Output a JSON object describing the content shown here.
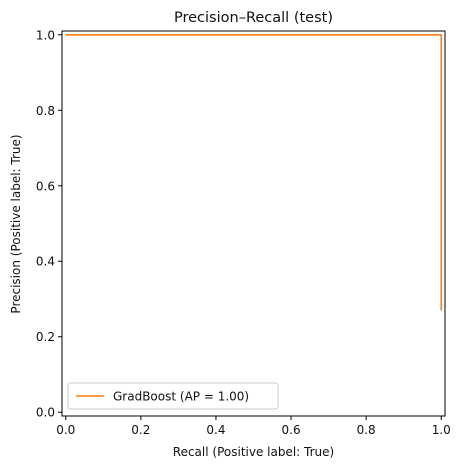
{
  "chart_data": {
    "type": "line",
    "title": "Precision–Recall (test)",
    "xlabel": "Recall (Positive label: True)",
    "ylabel": "Precision (Positive label: True)",
    "xlim": [
      -0.01,
      1.01
    ],
    "ylim": [
      -0.01,
      1.01
    ],
    "xticks": [
      "0.0",
      "0.2",
      "0.4",
      "0.6",
      "0.8",
      "1.0"
    ],
    "yticks": [
      "0.0",
      "0.2",
      "0.4",
      "0.6",
      "0.8",
      "1.0"
    ],
    "grid": false,
    "legend_position": "lower-left",
    "series": [
      {
        "name": "GradBoost (AP = 1.00)",
        "color": "#ff7f0e",
        "drawstyle": "steps-post",
        "x": [
          0.0,
          1.0,
          1.0
        ],
        "y": [
          1.0,
          1.0,
          0.27
        ]
      }
    ]
  }
}
